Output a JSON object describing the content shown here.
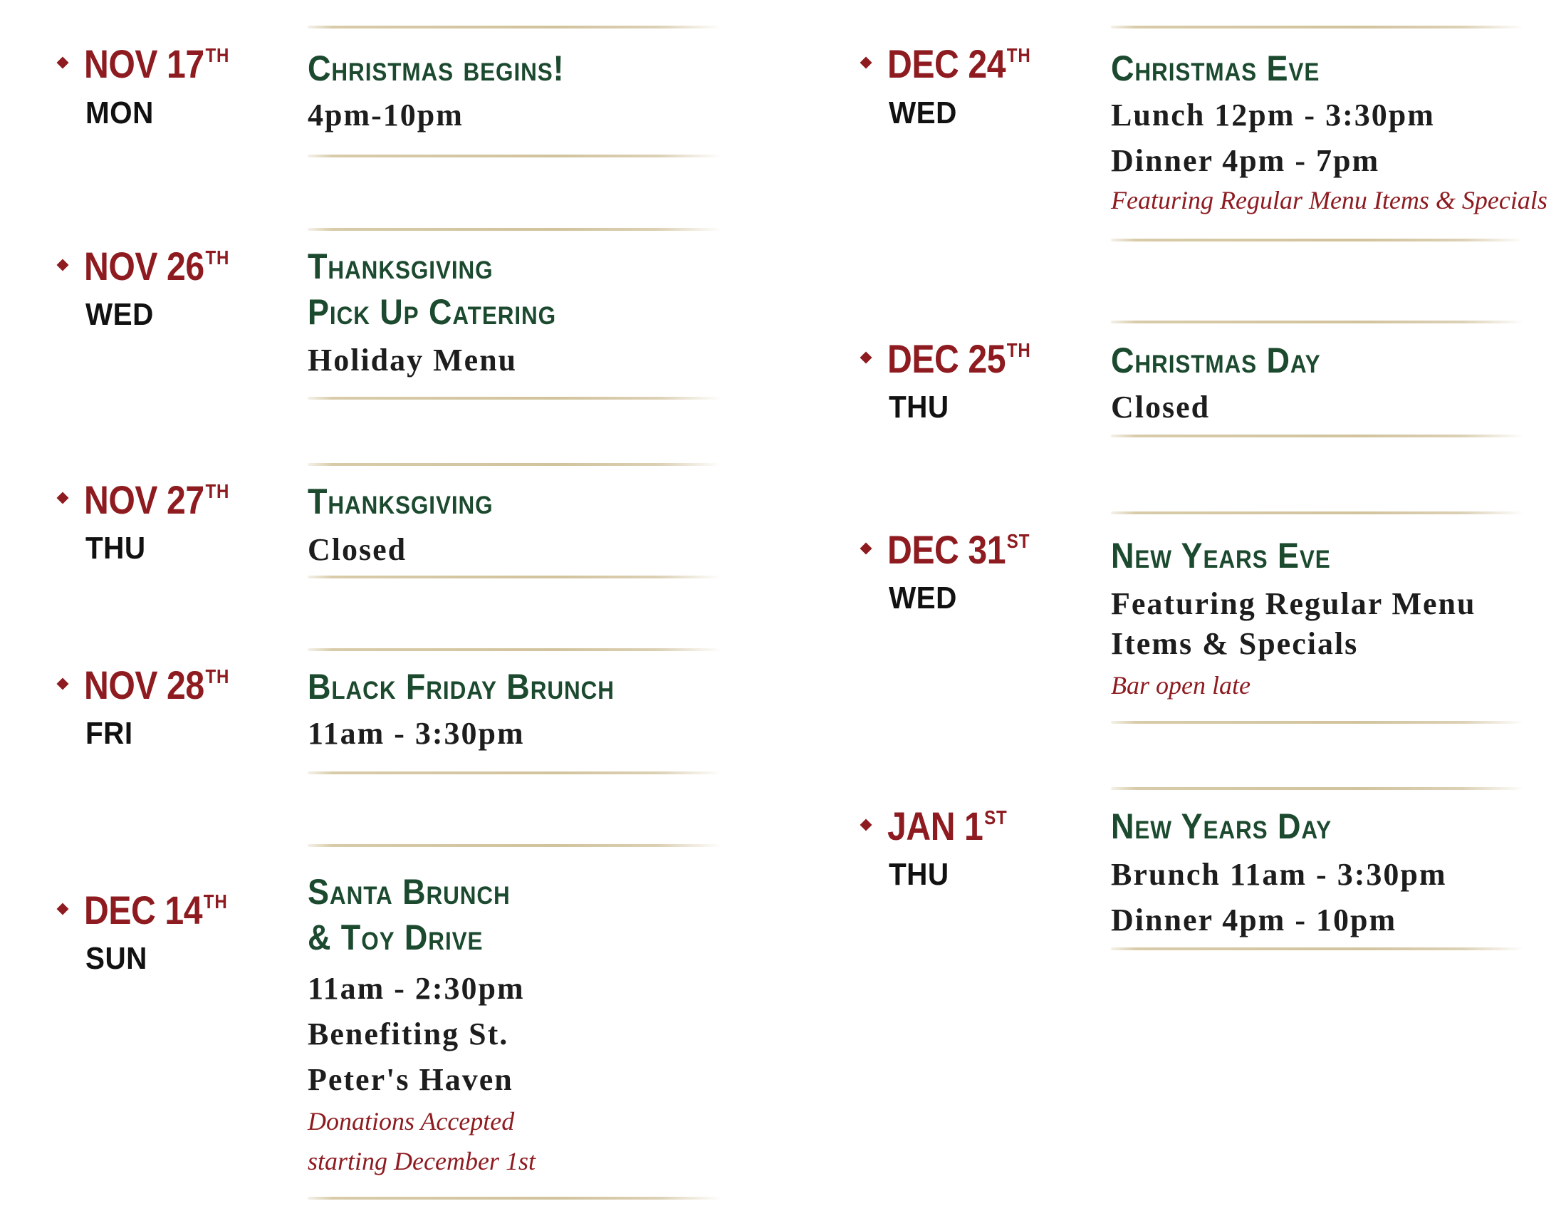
{
  "events": [
    {
      "month_day": "NOV 17",
      "suffix": "TH",
      "dow": "MON",
      "title": [
        "Christmas  begins!"
      ],
      "details": [
        "4pm-10pm"
      ],
      "notes": []
    },
    {
      "month_day": "NOV 26",
      "suffix": "TH",
      "dow": "WED",
      "title": [
        "Thanksgiving",
        "Pick Up Catering"
      ],
      "details": [
        "Holiday Menu"
      ],
      "notes": []
    },
    {
      "month_day": "NOV 27",
      "suffix": "TH",
      "dow": "THU",
      "title": [
        "Thanksgiving"
      ],
      "details": [
        "Closed"
      ],
      "notes": []
    },
    {
      "month_day": "NOV 28",
      "suffix": "TH",
      "dow": "FRI",
      "title": [
        "Black Friday Brunch"
      ],
      "details": [
        "11am - 3:30pm"
      ],
      "notes": []
    },
    {
      "month_day": "DEC 14",
      "suffix": "TH",
      "dow": "SUN",
      "title": [
        "Santa Brunch",
        "& Toy Drive"
      ],
      "details": [
        "11am - 2:30pm",
        "Benefiting St.",
        "Peter's Haven"
      ],
      "notes": [
        "Donations Accepted",
        "starting December 1st"
      ]
    },
    {
      "month_day": "DEC 24",
      "suffix": "TH",
      "dow": "WED",
      "title": [
        "Christmas Eve"
      ],
      "details": [
        "Lunch 12pm - 3:30pm",
        "Dinner 4pm - 7pm"
      ],
      "notes": [
        "Featuring Regular Menu Items & Specials"
      ]
    },
    {
      "month_day": "DEC 25",
      "suffix": "TH",
      "dow": "THU",
      "title": [
        "Christmas Day"
      ],
      "details": [
        "Closed"
      ],
      "notes": []
    },
    {
      "month_day": "DEC 31",
      "suffix": "ST",
      "dow": "WED",
      "title": [
        "New Years Eve"
      ],
      "details": [
        "Featuring Regular Menu",
        "Items & Specials"
      ],
      "notes": [
        "Bar open late"
      ]
    },
    {
      "month_day": "JAN 1",
      "suffix": "ST",
      "dow": "THU",
      "title": [
        "New Years Day"
      ],
      "details": [
        "Brunch 11am - 3:30pm",
        "Dinner 4pm - 10pm"
      ],
      "notes": []
    }
  ],
  "colors": {
    "date": "#8e1b20",
    "title": "#1c4a2f",
    "detail": "#1d1d1d",
    "note": "#8e1b20",
    "rule": "#d2c39d"
  }
}
